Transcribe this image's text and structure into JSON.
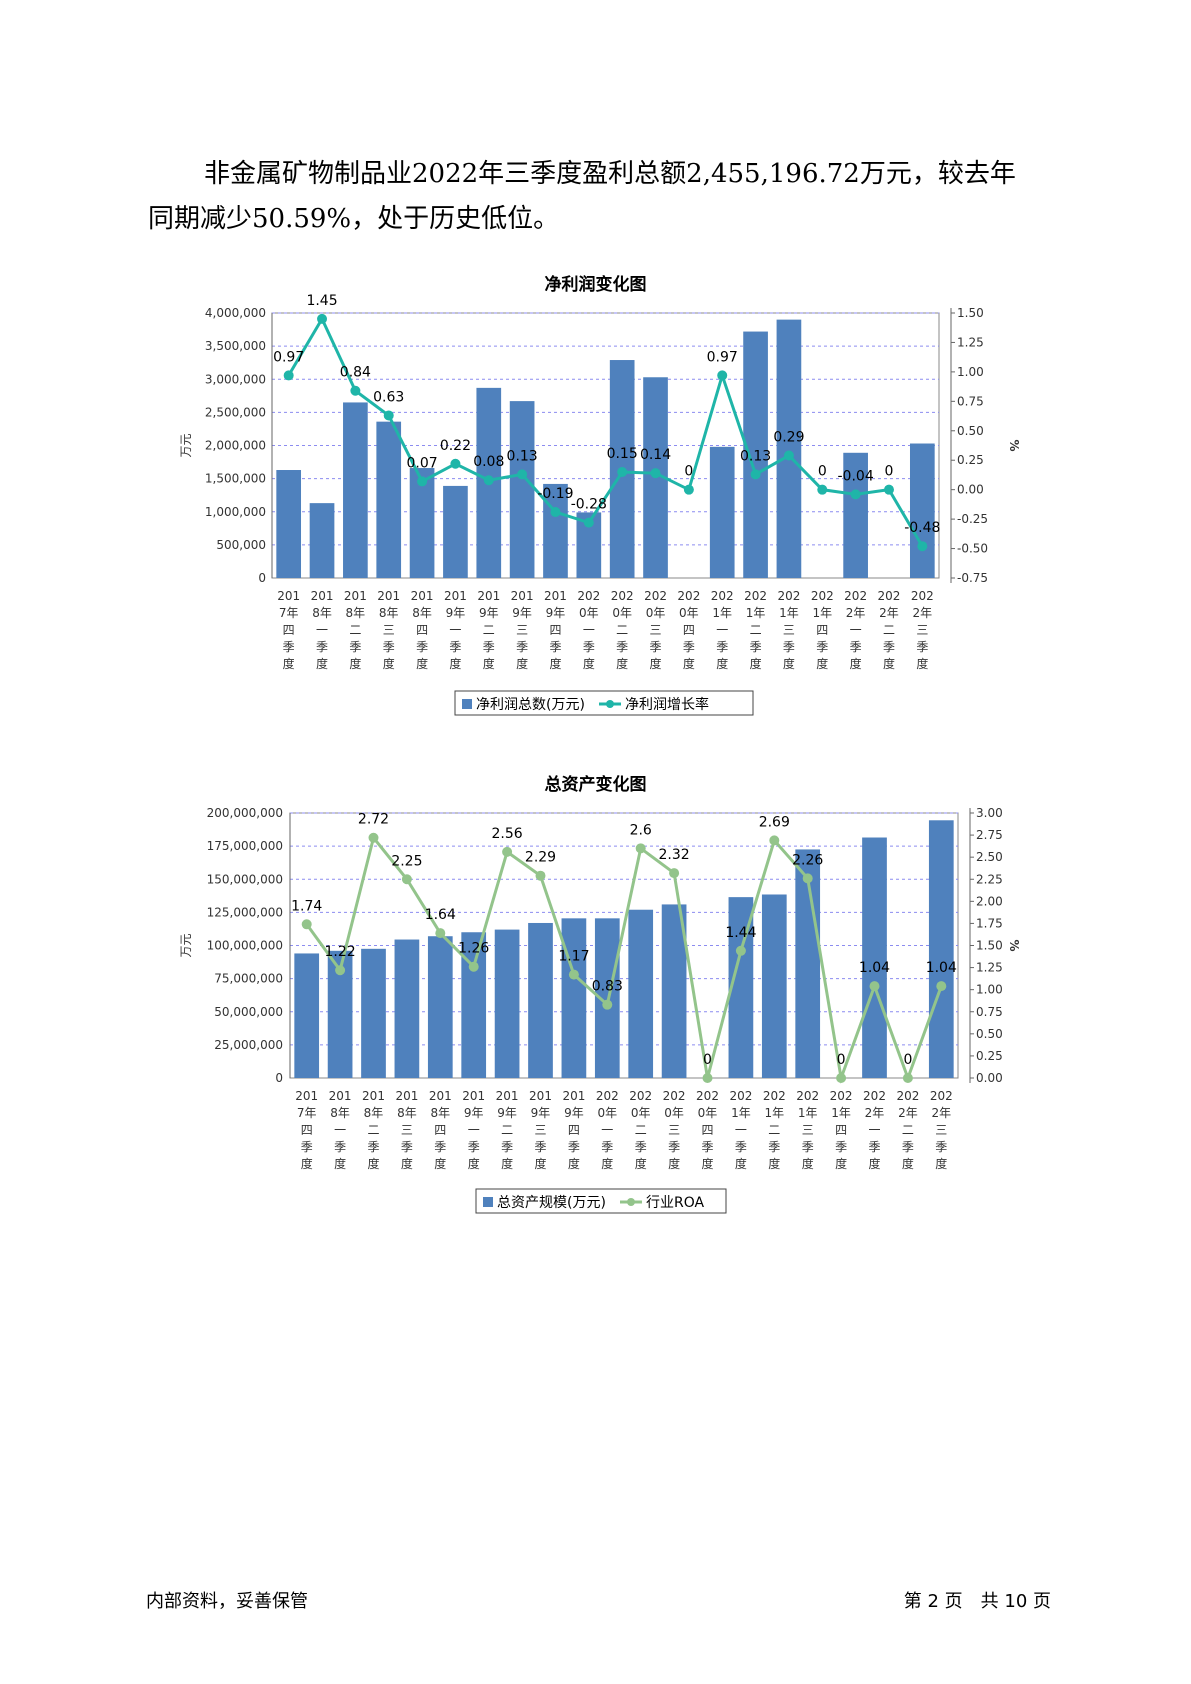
{
  "paragraph": {
    "line1": "非金属矿物制品业2022年三季度盈利总额2,455,196.72万元，较去年",
    "line2": "同期减少50.59%，处于历史低位。"
  },
  "footer": {
    "left": "内部资料，妥善保管",
    "page": "第 2 页　共 10 页"
  },
  "chart_data": [
    {
      "type": "bar",
      "title": "净利润变化图",
      "ylabel": "万元",
      "y2label": "%",
      "ylim": [
        0,
        4000000
      ],
      "y2lim": [
        -0.75,
        1.5
      ],
      "yticks": [
        "0",
        "500,000",
        "1,000,000",
        "1,500,000",
        "2,000,000",
        "2,500,000",
        "3,000,000",
        "3,500,000",
        "4,000,000"
      ],
      "y2ticks": [
        "-0.75",
        "-0.50",
        "-0.25",
        "0.00",
        "0.25",
        "0.50",
        "0.75",
        "1.00",
        "1.25",
        "1.50"
      ],
      "categories": [
        "2017年四季度",
        "2018年一季度",
        "2018年二季度",
        "2018年三季度",
        "2018年四季度",
        "2019年一季度",
        "2019年二季度",
        "2019年三季度",
        "2019年四季度",
        "2020年一季度",
        "2020年二季度",
        "2020年三季度",
        "2020年四季度",
        "2021年一季度",
        "2021年二季度",
        "2021年三季度",
        "2021年四季度",
        "2022年一季度",
        "2022年二季度",
        "2022年三季度"
      ],
      "bar_color": "#4f81bd",
      "line_color": "#1fb5a8",
      "series": [
        {
          "name": "净利润总数(万元)",
          "kind": "bar",
          "axis": "left",
          "values": [
            1630000,
            1130000,
            2650000,
            2360000,
            1660000,
            1390000,
            2870000,
            2670000,
            1420000,
            990000,
            3290000,
            3030000,
            0,
            1980000,
            3720000,
            3900000,
            0,
            1890000,
            0,
            2030000
          ]
        },
        {
          "name": "净利润增长率",
          "kind": "line",
          "axis": "right",
          "values": [
            0.97,
            1.45,
            0.84,
            0.63,
            0.07,
            0.22,
            0.08,
            0.13,
            -0.19,
            -0.28,
            0.15,
            0.14,
            0,
            0.97,
            0.13,
            0.29,
            0,
            -0.04,
            0,
            -0.48
          ],
          "labels": [
            "0.97",
            "1.45",
            "0.84",
            "0.63",
            "0.07",
            "0.22",
            "0.08",
            "0.13",
            "-0.19",
            "-0.28",
            "0.15",
            "0.14",
            "0",
            "0.97",
            "0.13",
            "0.29",
            "0",
            "-0.04",
            "0",
            "-0.48"
          ]
        }
      ],
      "grid": true,
      "legend": "bottom"
    },
    {
      "type": "bar",
      "title": "总资产变化图",
      "ylabel": "万元",
      "y2label": "%",
      "ylim": [
        0,
        200000000
      ],
      "y2lim": [
        0,
        3.0
      ],
      "yticks": [
        "0",
        "25,000,000",
        "50,000,000",
        "75,000,000",
        "100,000,000",
        "125,000,000",
        "150,000,000",
        "175,000,000",
        "200,000,000"
      ],
      "y2ticks": [
        "0.00",
        "0.25",
        "0.50",
        "0.75",
        "1.00",
        "1.25",
        "1.50",
        "1.75",
        "2.00",
        "2.25",
        "2.50",
        "2.75",
        "3.00"
      ],
      "categories": [
        "2017年四季度",
        "2018年一季度",
        "2018年二季度",
        "2018年三季度",
        "2018年四季度",
        "2019年一季度",
        "2019年二季度",
        "2019年三季度",
        "2019年四季度",
        "2020年一季度",
        "2020年二季度",
        "2020年三季度",
        "2020年四季度",
        "2021年一季度",
        "2021年二季度",
        "2021年三季度",
        "2021年四季度",
        "2022年一季度",
        "2022年二季度",
        "2022年三季度"
      ],
      "bar_color": "#4f81bd",
      "line_color": "#93c48b",
      "series": [
        {
          "name": "总资产规模(万元)",
          "kind": "bar",
          "axis": "left",
          "values": [
            94000000,
            96000000,
            97500000,
            104500000,
            107000000,
            110000000,
            112000000,
            117000000,
            120500000,
            120500000,
            127000000,
            131000000,
            0,
            136500000,
            138500000,
            172500000,
            0,
            181500000,
            0,
            194500000
          ]
        },
        {
          "name": "行业ROA",
          "kind": "line",
          "axis": "right",
          "values": [
            1.74,
            1.22,
            2.72,
            2.25,
            1.64,
            1.26,
            2.56,
            2.29,
            1.17,
            0.83,
            2.6,
            2.32,
            0,
            1.44,
            2.69,
            2.26,
            0,
            1.04,
            0,
            1.04
          ],
          "labels": [
            "1.74",
            "1.22",
            "2.72",
            "2.25",
            "1.64",
            "1.26",
            "2.56",
            "2.29",
            "1.17",
            "0.83",
            "2.6",
            "2.32",
            "0",
            "1.44",
            "2.69",
            "2.26",
            "0",
            "1.04",
            "0",
            "1.04"
          ]
        }
      ],
      "grid": true,
      "legend": "bottom"
    }
  ]
}
